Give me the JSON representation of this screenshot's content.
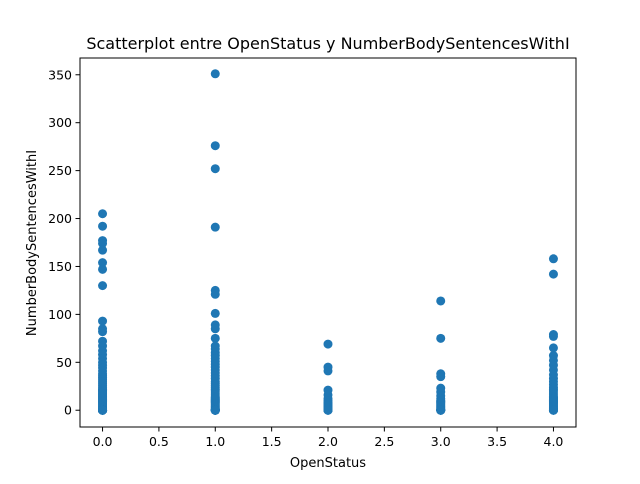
{
  "chart_data": {
    "type": "scatter",
    "title": "Scatterplot entre OpenStatus y NumberBodySentencesWithI",
    "xlabel": "OpenStatus",
    "ylabel": "NumberBodySentencesWithI",
    "xlim": [
      -0.2,
      4.2
    ],
    "ylim": [
      -17.5,
      367.5
    ],
    "xticks": [
      0.0,
      0.5,
      1.0,
      1.5,
      2.0,
      2.5,
      3.0,
      3.5,
      4.0
    ],
    "xtick_labels": [
      "0.0",
      "0.5",
      "1.0",
      "1.5",
      "2.0",
      "2.5",
      "3.0",
      "3.5",
      "4.0"
    ],
    "yticks": [
      0,
      50,
      100,
      150,
      200,
      250,
      300,
      350
    ],
    "ytick_labels": [
      "0",
      "50",
      "100",
      "150",
      "200",
      "250",
      "300",
      "350"
    ],
    "grid": false,
    "marker_color": "#1f77b4",
    "series": [
      {
        "x": [
          0,
          0,
          0,
          0,
          0,
          0,
          0,
          0,
          0,
          0,
          0,
          0,
          0,
          0,
          0,
          0,
          0,
          0,
          0,
          0,
          0,
          0,
          0,
          0,
          0,
          0,
          0,
          0,
          0,
          0,
          0,
          0,
          0,
          0,
          0,
          0,
          0,
          0,
          0,
          0,
          0,
          0,
          0,
          0,
          0,
          0,
          0,
          0,
          0,
          0,
          0,
          0,
          0,
          0,
          0,
          0,
          0,
          0,
          0,
          0,
          0,
          0,
          0,
          1,
          1,
          1,
          1,
          1,
          1,
          1,
          1,
          1,
          1,
          1,
          1,
          1,
          1,
          1,
          1,
          1,
          1,
          1,
          1,
          1,
          1,
          1,
          1,
          1,
          1,
          1,
          1,
          1,
          1,
          1,
          1,
          1,
          1,
          1,
          1,
          1,
          1,
          1,
          1,
          1,
          1,
          1,
          1,
          1,
          1,
          1,
          1,
          1,
          1,
          1,
          1,
          1,
          1,
          1,
          1,
          1,
          1,
          1,
          2,
          2,
          2,
          2,
          2,
          2,
          2,
          2,
          2,
          2,
          2,
          2,
          2,
          2,
          2,
          2,
          2,
          2,
          2,
          3,
          3,
          3,
          3,
          3,
          3,
          3,
          3,
          3,
          3,
          3,
          3,
          3,
          3,
          3,
          3,
          3,
          3,
          3,
          3,
          3,
          3,
          3,
          3,
          4,
          4,
          4,
          4,
          4,
          4,
          4,
          4,
          4,
          4,
          4,
          4,
          4,
          4,
          4,
          4,
          4,
          4,
          4,
          4,
          4,
          4,
          4,
          4,
          4,
          4,
          4,
          4,
          4,
          4,
          4,
          4,
          4,
          4,
          4,
          4
        ],
        "y": [
          205,
          192,
          177,
          174,
          167,
          154,
          147,
          130,
          93,
          85,
          82,
          72,
          67,
          62,
          58,
          54,
          50,
          47,
          44,
          41,
          38,
          36,
          34,
          32,
          30,
          28,
          26,
          24,
          22,
          21,
          20,
          19,
          18,
          17,
          16,
          15,
          14,
          13,
          12,
          11,
          10,
          9,
          8,
          7,
          6,
          5,
          4,
          3,
          2,
          1,
          0,
          0,
          0,
          0,
          0,
          0,
          0,
          0,
          0,
          0,
          0,
          0,
          0,
          351,
          276,
          252,
          191,
          125,
          121,
          101,
          89,
          85,
          75,
          67,
          64,
          60,
          57,
          54,
          51,
          48,
          45,
          42,
          39,
          36,
          33,
          30,
          28,
          26,
          24,
          22,
          20,
          18,
          16,
          14,
          13,
          12,
          11,
          10,
          9,
          8,
          7,
          6,
          5,
          4,
          3,
          2,
          1,
          0,
          0,
          0,
          0,
          0,
          0,
          0,
          0,
          0,
          0,
          0,
          0,
          0,
          0,
          0,
          69,
          45,
          41,
          21,
          16,
          12,
          10,
          8,
          7,
          6,
          5,
          4,
          3,
          2,
          1,
          0,
          0,
          0,
          0,
          114,
          75,
          38,
          35,
          23,
          19,
          15,
          12,
          10,
          9,
          8,
          7,
          6,
          5,
          4,
          3,
          2,
          1,
          0,
          0,
          0,
          0,
          0,
          0,
          158,
          142,
          79,
          77,
          65,
          57,
          52,
          47,
          42,
          37,
          33,
          30,
          27,
          24,
          22,
          20,
          18,
          16,
          14,
          13,
          12,
          11,
          10,
          9,
          8,
          7,
          6,
          5,
          4,
          3,
          2,
          1,
          0,
          0,
          0,
          0
        ]
      }
    ]
  }
}
